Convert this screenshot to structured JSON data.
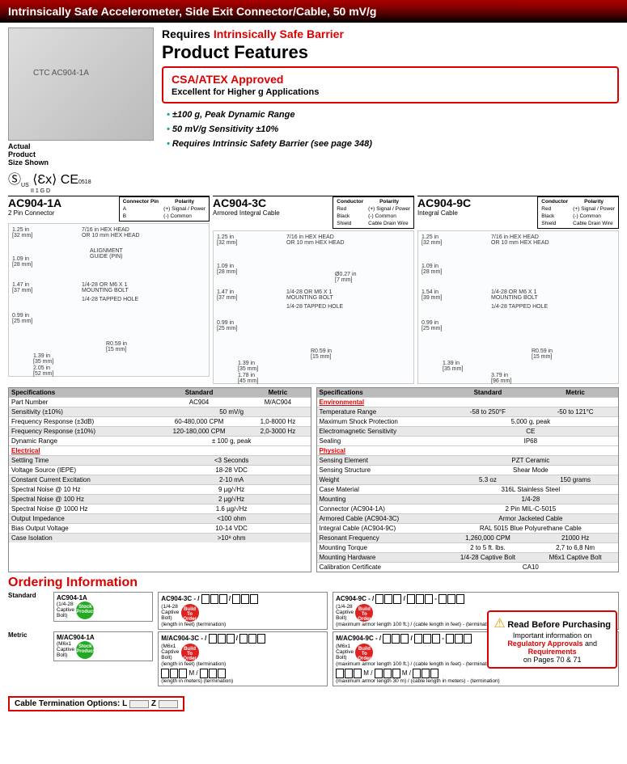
{
  "header": "Intrinsically Safe Accelerometer, Side Exit Connector/Cable, 50 mV/g",
  "requires": {
    "prefix": "Requires",
    "red": "Intrinsically Safe Barrier"
  },
  "pf_title": "Product Features",
  "redbox": {
    "csa": "CSA/ATEX Approved",
    "sub": "Excellent for Higher g Applications"
  },
  "bullets": [
    "±100 g, Peak Dynamic Range",
    "50 mV/g Sensitivity ±10%",
    "Requires Intrinsic Safety Barrier (see page 348)"
  ],
  "size_note": "Actual\nProduct\nSize Shown",
  "cert_footer": "II 1 G D",
  "ce_num": "0518",
  "models": [
    {
      "name": "AC904-1A",
      "sub": "2 Pin Connector",
      "pin": {
        "hdr": [
          "Connector Pin",
          "Polarity"
        ],
        "rows": [
          [
            "A",
            "(+) Signal / Power"
          ],
          [
            "B",
            "(-) Common"
          ]
        ]
      },
      "dims": [
        [
          "1.25 in\n[32 mm]",
          4,
          4
        ],
        [
          "7/16 in HEX HEAD\nOR 10 mm HEX HEAD",
          90,
          4
        ],
        [
          "ALIGNMENT\nGUIDE (PIN)",
          100,
          30
        ],
        [
          "1.09 in\n[28 mm]",
          4,
          40
        ],
        [
          "1.47 in\n[37 mm]",
          4,
          72
        ],
        [
          "1/4-28 OR M6 X 1\nMOUNTING BOLT",
          90,
          72
        ],
        [
          "1/4-28 TAPPED HOLE",
          90,
          90
        ],
        [
          "0.99 in\n[25 mm]",
          4,
          110
        ],
        [
          "R0.59 in\n[15 mm]",
          120,
          145
        ],
        [
          "1.39 in\n[35 mm]",
          30,
          160
        ],
        [
          "2.05 in\n[52 mm]",
          30,
          175
        ]
      ]
    },
    {
      "name": "AC904-3C",
      "sub": "Armored Integral Cable",
      "pin": {
        "hdr": [
          "Conductor",
          "Polarity"
        ],
        "rows": [
          [
            "Red",
            "(+) Signal / Power"
          ],
          [
            "Black",
            "(-) Common"
          ],
          [
            "Shield",
            "Cable Drain Wire"
          ]
        ]
      },
      "dims": [
        [
          "1.25 in\n[32 mm]",
          4,
          4
        ],
        [
          "7/16 in HEX HEAD\nOR 10 mm HEX HEAD",
          90,
          4
        ],
        [
          "1.09 in\n[28 mm]",
          4,
          40
        ],
        [
          "Ø0.27 in\n[7 mm]",
          150,
          50
        ],
        [
          "1.47 in\n[37 mm]",
          4,
          72
        ],
        [
          "1/4-28 OR M6 X 1\nMOUNTING BOLT",
          90,
          72
        ],
        [
          "1/4-28 TAPPED HOLE",
          90,
          90
        ],
        [
          "0.99 in\n[25 mm]",
          4,
          110
        ],
        [
          "R0.59 in\n[15 mm]",
          120,
          145
        ],
        [
          "1.39 in\n[35 mm]",
          30,
          160
        ],
        [
          "1.78 in\n[45 mm]",
          30,
          175
        ]
      ]
    },
    {
      "name": "AC904-9C",
      "sub": "Integral Cable",
      "pin": {
        "hdr": [
          "Conductor",
          "Polarity"
        ],
        "rows": [
          [
            "Red",
            "(+) Signal / Power"
          ],
          [
            "Black",
            "(-) Common"
          ],
          [
            "Shield",
            "Cable Drain Wire"
          ]
        ]
      },
      "dims": [
        [
          "1.25 in\n[32 mm]",
          4,
          4
        ],
        [
          "7/16 in HEX HEAD\nOR 10 mm HEX HEAD",
          90,
          4
        ],
        [
          "1.09 in\n[28 mm]",
          4,
          40
        ],
        [
          "1.54 in\n[39 mm]",
          4,
          72
        ],
        [
          "1/4-28 OR M6 X 1\nMOUNTING BOLT",
          90,
          72
        ],
        [
          "1/4-28 TAPPED HOLE",
          90,
          90
        ],
        [
          "0.99 in\n[25 mm]",
          4,
          110
        ],
        [
          "R0.59 in\n[15 mm]",
          140,
          145
        ],
        [
          "1.39 in\n[35 mm]",
          30,
          160
        ],
        [
          "3.79 in\n[96 mm]",
          90,
          175
        ]
      ]
    }
  ],
  "spec_left": {
    "hdr": [
      "Specifications",
      "Standard",
      "Metric"
    ],
    "rows": [
      [
        "Part Number",
        "AC904",
        "M/AC904",
        0
      ],
      [
        "Sensitivity (±10%)",
        "50 mV/g",
        "",
        1
      ],
      [
        "Frequency Response (±3dB)",
        "60-480,000 CPM",
        "1,0-8000 Hz",
        0
      ],
      [
        "Frequency Response (±10%)",
        "120-180,000 CPM",
        "2,0-3000 Hz",
        1
      ],
      [
        "Dynamic Range",
        "± 100 g, peak",
        "",
        0
      ],
      [
        "_Electrical",
        "",
        "",
        0
      ],
      [
        "Settling Time",
        "<3 Seconds",
        "",
        1
      ],
      [
        "Voltage Source (IEPE)",
        "18-28 VDC",
        "",
        0
      ],
      [
        "Constant Current Excitation",
        "2-10 mA",
        "",
        1
      ],
      [
        "Spectral Noise @ 10 Hz",
        "9 µg/√Hz",
        "",
        0
      ],
      [
        "Spectral Noise @ 100 Hz",
        "2 µg/√Hz",
        "",
        1
      ],
      [
        "Spectral Noise @ 1000 Hz",
        "1.6 µg/√Hz",
        "",
        0
      ],
      [
        "Output Impedance",
        "<100 ohm",
        "",
        1
      ],
      [
        "Bias Output Voltage",
        "10-14 VDC",
        "",
        0
      ],
      [
        "Case Isolation",
        ">10⁸ ohm",
        "",
        1
      ]
    ]
  },
  "spec_right": {
    "hdr": [
      "Specifications",
      "Standard",
      "Metric"
    ],
    "rows": [
      [
        "_Environmental",
        "",
        "",
        0
      ],
      [
        "Temperature Range",
        "-58 to 250°F",
        "-50 to 121°C",
        1
      ],
      [
        "Maximum Shock Protection",
        "5,000 g, peak",
        "",
        0
      ],
      [
        "Electromagnetic Sensitivity",
        "CE",
        "",
        1
      ],
      [
        "Sealing",
        "IP68",
        "",
        0
      ],
      [
        "_Physical",
        "",
        "",
        0
      ],
      [
        "Sensing Element",
        "PZT Ceramic",
        "",
        1
      ],
      [
        "Sensing Structure",
        "Shear Mode",
        "",
        0
      ],
      [
        "Weight",
        "5.3 oz",
        "150 grams",
        1
      ],
      [
        "Case Material",
        "316L Stainless Steel",
        "",
        0
      ],
      [
        "Mounting",
        "1/4-28",
        "",
        1
      ],
      [
        "Connector (AC904-1A)",
        "2 Pin MIL-C-5015",
        "",
        0
      ],
      [
        "Armored Cable (AC904-3C)",
        "Armor Jacketed Cable",
        "",
        1
      ],
      [
        "Integral Cable (AC904-9C)",
        "RAL 5015 Blue Polyurethane Cable",
        "",
        0
      ],
      [
        "Resonant Frequency",
        "1,260,000 CPM",
        "21000 Hz",
        1
      ],
      [
        "Mounting Torque",
        "2 to 5 ft. lbs.",
        "2,7 to 6,8 Nm",
        0
      ],
      [
        "Mounting Hardware",
        "1/4-28 Captive Bolt",
        "M6x1 Captive Bolt",
        1
      ],
      [
        "Calibration Certificate",
        "CA10",
        "",
        0
      ]
    ]
  },
  "order_title": "Ordering Information",
  "order": {
    "labels": {
      "std": "Standard",
      "met": "Metric"
    },
    "std": [
      {
        "pn": "AC904-1A",
        "sub": "(1/4-28\nCaptive\nBolt)",
        "sticker": "Stock\nProduct",
        "stc": "green"
      },
      {
        "pn": "AC904-3C - /",
        "sub": "(1/4-28\nCaptive\nBolt)",
        "sticker": "Build\nTo\nOrder",
        "stc": "redc",
        "extra": "(length in feet)   (termination)"
      },
      {
        "pn": "AC904-9C - /",
        "sub": "(1/4-28\nCaptive\nBolt)",
        "sticker": "Build\nTo\nOrder",
        "stc": "redc",
        "extra": "(maximum armor length 100 ft.) / (cable length in feet) - (termination)"
      }
    ],
    "met": [
      {
        "pn": "M/AC904-1A",
        "sub": "(M6x1\nCaptive\nBolt)",
        "sticker": "Stock\nProduct",
        "stc": "green"
      },
      {
        "pn": "M/AC904-3C - /",
        "sub": "(M6x1\nCaptive\nBolt)",
        "sticker": "Build\nTo\nOrder",
        "stc": "redc",
        "extra": "(length in feet)   (termination)",
        "extra2": "(length in meters)   (termination)"
      },
      {
        "pn": "M/AC904-9C - /",
        "sub": "(M6x1\nCaptive\nBolt)",
        "sticker": "Build\nTo\nOrder",
        "stc": "redc",
        "extra": "(maximum armor length 100 ft.) / (cable length in feet) - (termination)",
        "extra2": "(maximum armor length 30 m) / (cable length in meters) - (termination)"
      }
    ]
  },
  "purchase": {
    "title": "Read Before Purchasing",
    "line1": "Important information on",
    "line2": "Regulatory Approvals",
    "and": "and",
    "line3": "Requirements",
    "pages": "on Pages 70 & 71"
  },
  "cable_opts": {
    "label": "Cable Termination Options:",
    "opts": [
      "L",
      "Z"
    ]
  }
}
